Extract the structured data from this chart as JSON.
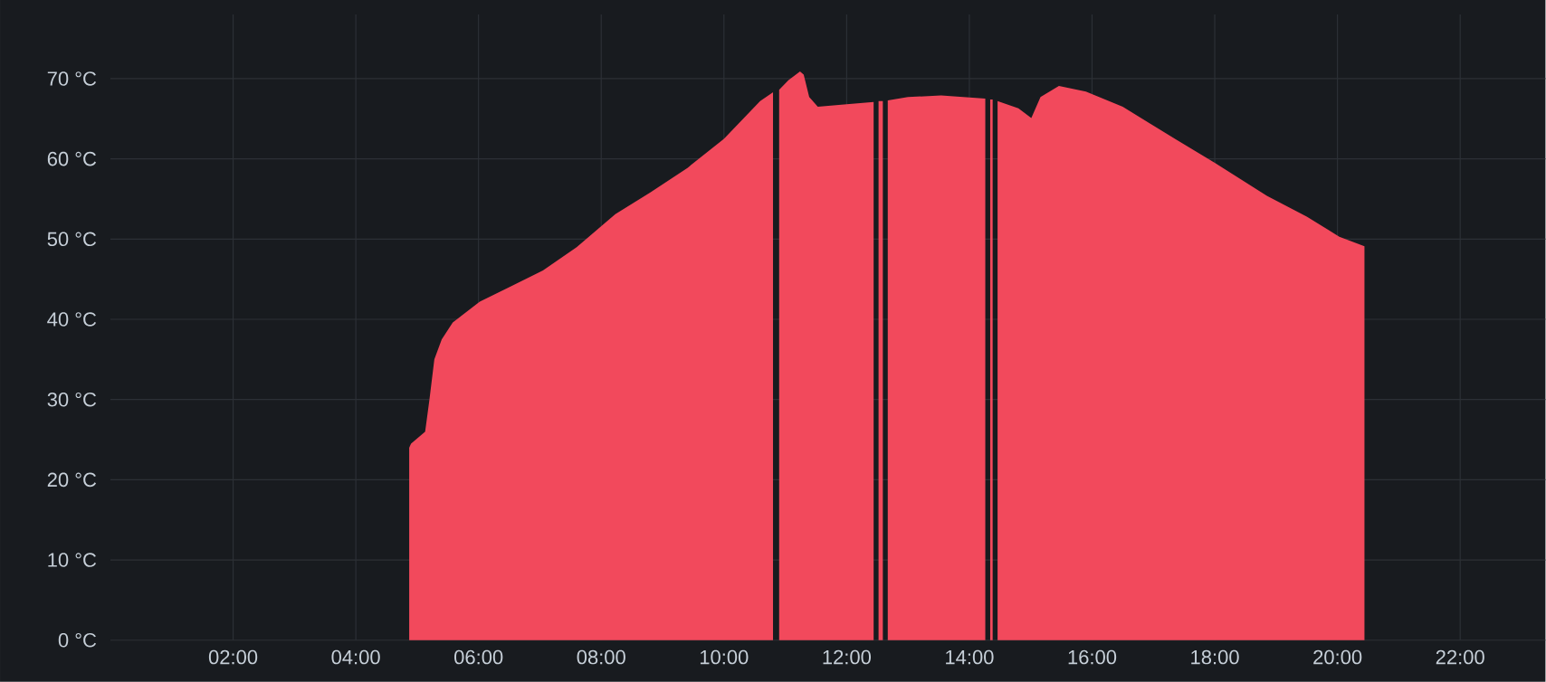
{
  "chart_data": {
    "type": "area",
    "grid": true,
    "xlim": [
      0,
      23.39
    ],
    "ylim": [
      0,
      78
    ],
    "xticks": [
      {
        "value": 2,
        "label": "02:00"
      },
      {
        "value": 4,
        "label": "04:00"
      },
      {
        "value": 6,
        "label": "06:00"
      },
      {
        "value": 8,
        "label": "08:00"
      },
      {
        "value": 10,
        "label": "10:00"
      },
      {
        "value": 12,
        "label": "12:00"
      },
      {
        "value": 14,
        "label": "14:00"
      },
      {
        "value": 16,
        "label": "16:00"
      },
      {
        "value": 18,
        "label": "18:00"
      },
      {
        "value": 20,
        "label": "20:00"
      },
      {
        "value": 22,
        "label": "22:00"
      }
    ],
    "yticks": [
      {
        "value": 0,
        "label": "0 °C"
      },
      {
        "value": 10,
        "label": "10 °C"
      },
      {
        "value": 20,
        "label": "20 °C"
      },
      {
        "value": 30,
        "label": "30 °C"
      },
      {
        "value": 40,
        "label": "40 °C"
      },
      {
        "value": 50,
        "label": "50 °C"
      },
      {
        "value": 60,
        "label": "60 °C"
      },
      {
        "value": 70,
        "label": "70 °C"
      }
    ],
    "series": [
      {
        "color": "#f2495c",
        "x": [
          4.87,
          4.9,
          5.13,
          5.2,
          5.28,
          5.4,
          5.58,
          6.02,
          6.5,
          7.05,
          7.6,
          8.23,
          8.8,
          9.41,
          10.0,
          10.59,
          10.8,
          10.85,
          10.9,
          11.05,
          11.24,
          11.3,
          11.39,
          11.53,
          12.0,
          12.44,
          12.48,
          12.52,
          12.59,
          12.63,
          12.67,
          13.0,
          13.54,
          14.26,
          14.3,
          14.34,
          14.38,
          14.42,
          14.46,
          14.8,
          15.01,
          15.16,
          15.46,
          15.9,
          16.5,
          17.37,
          18.0,
          18.85,
          19.5,
          20.03,
          20.44
        ],
        "values": [
          24,
          24.5,
          26,
          30,
          35,
          37.5,
          39.6,
          42.2,
          44,
          46.1,
          49,
          53.1,
          55.8,
          58.9,
          62.5,
          67.2,
          68.3,
          null,
          68.6,
          69.8,
          70.9,
          70.5,
          67.7,
          66.5,
          66.8,
          67.1,
          null,
          67.2,
          67.2,
          null,
          67.3,
          67.7,
          67.9,
          67.5,
          null,
          67.4,
          67.4,
          null,
          67.2,
          66.3,
          65.1,
          67.7,
          69.1,
          68.4,
          66.5,
          62.4,
          59.5,
          55.4,
          52.8,
          50.3,
          49.1
        ]
      }
    ]
  }
}
